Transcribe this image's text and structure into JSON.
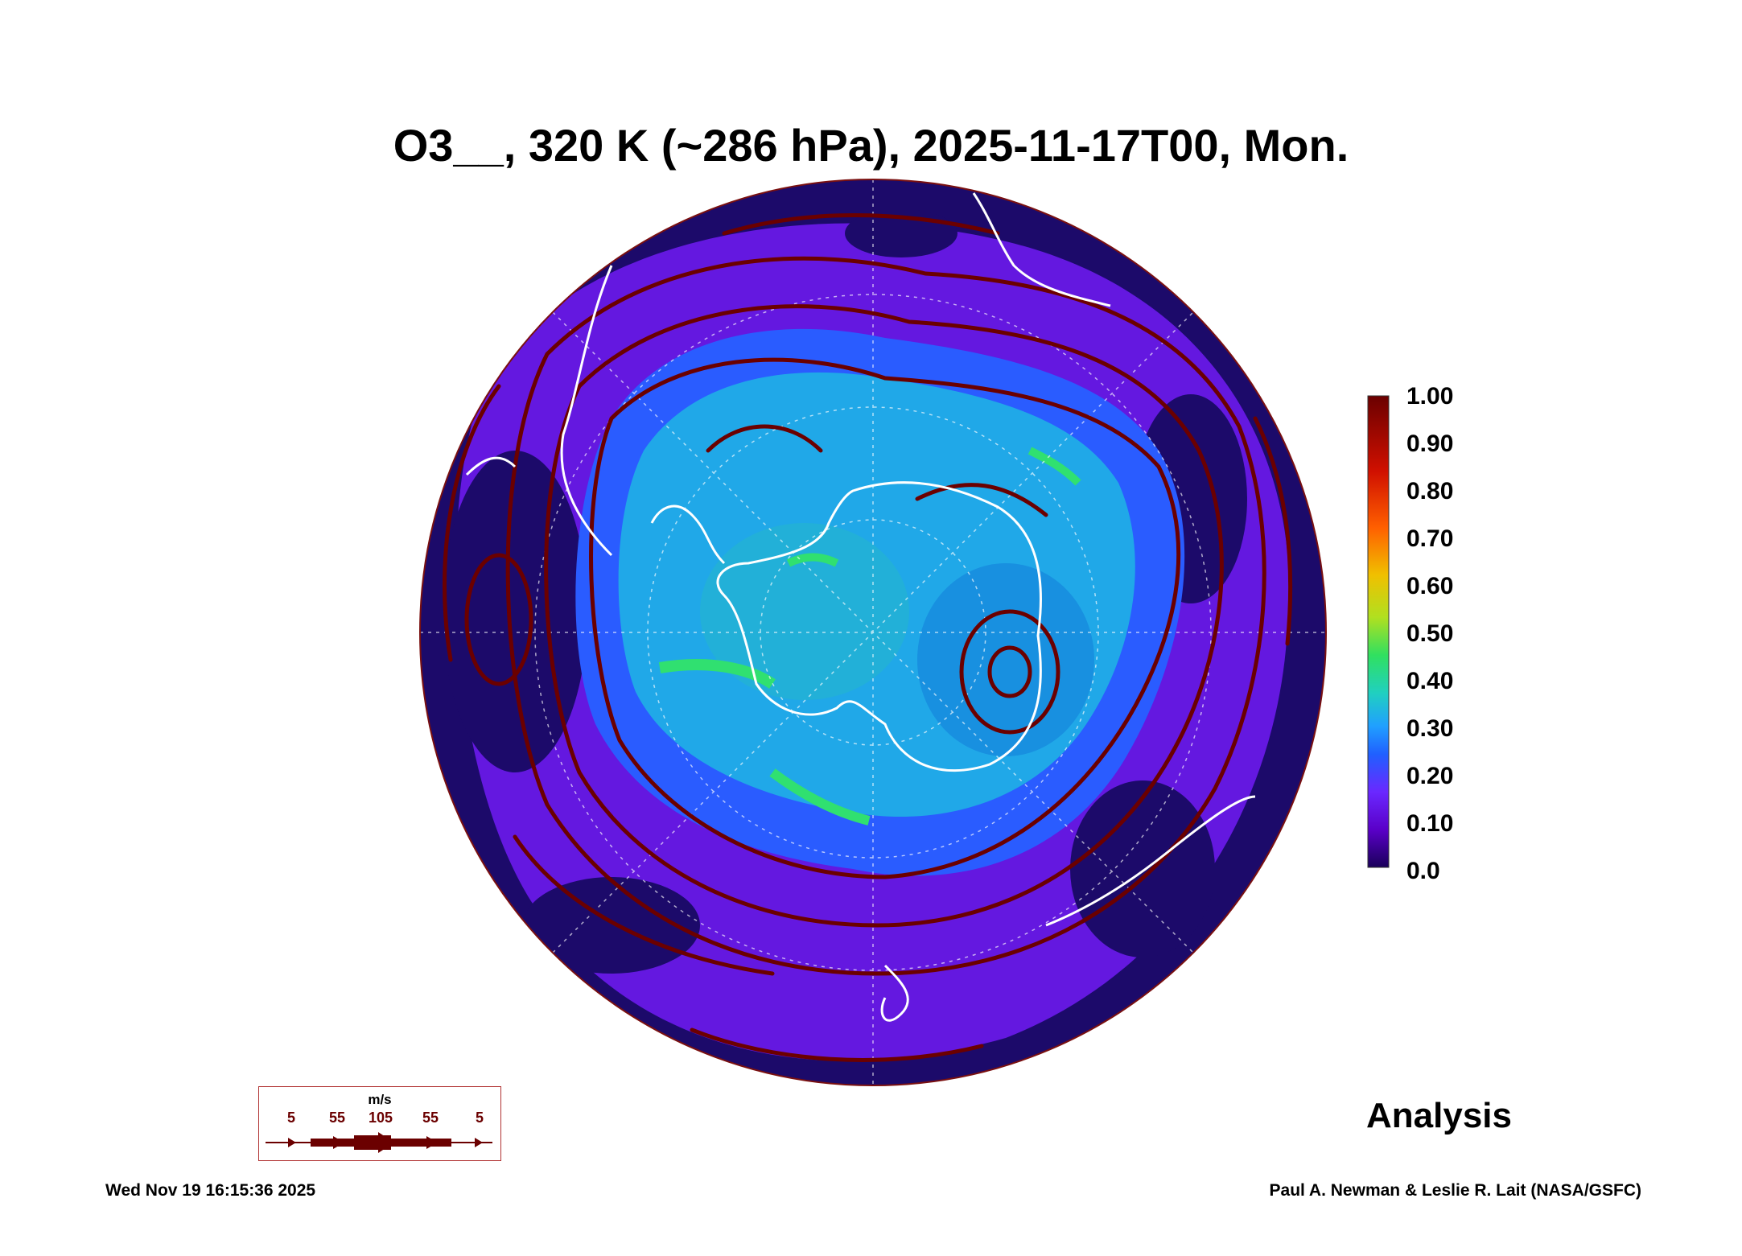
{
  "title": "O3__, 320 K (~286 hPa), 2025-11-17T00, Mon.",
  "colorbar": {
    "ticks": [
      "1.00",
      "0.90",
      "0.80",
      "0.70",
      "0.60",
      "0.50",
      "0.40",
      "0.30",
      "0.20",
      "0.10",
      "0.0"
    ],
    "colors": [
      "#1a005a",
      "#5a00c8",
      "#6a28ff",
      "#2060ff",
      "#20a0ff",
      "#20d0c0",
      "#30e060",
      "#b0e020",
      "#f0c000",
      "#ff6000",
      "#d01000",
      "#6b0000"
    ]
  },
  "wind_key": {
    "unit": "m/s",
    "speeds": [
      "5",
      "55",
      "105",
      "55",
      "5"
    ]
  },
  "label": "Analysis",
  "footer": {
    "timestamp": "Wed Nov 19 16:15:36 2025",
    "credit": "Paul A. Newman & Leslie R. Lait (NASA/GSFC)"
  },
  "map": {
    "projection": "polar stereographic",
    "hemisphere": "south",
    "field": "ozone mixing ratio",
    "streamline_color": "#6b0000",
    "coastline_color": "#ffffff"
  }
}
